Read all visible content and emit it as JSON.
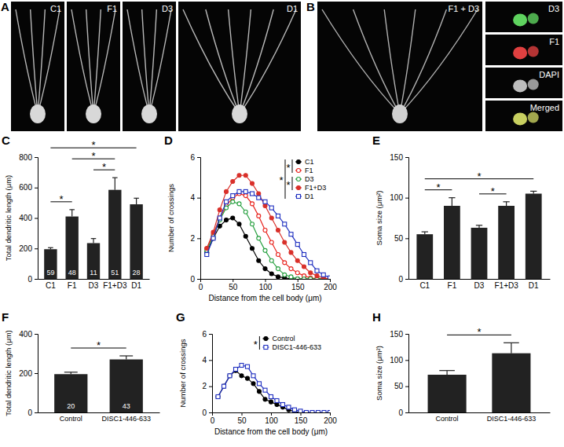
{
  "images": [
    {
      "title": "A",
      "labels": [
        "C1",
        "F1",
        "D3",
        "D1"
      ]
    },
    {
      "title": "B",
      "labels": [
        "F1 + D3",
        "D3",
        "F1",
        "DAPI",
        "Merged"
      ]
    }
  ],
  "chart_data": [
    {
      "type": "bar",
      "title": "C",
      "ylabel": "Total dendritic length (μm)",
      "categories": [
        "C1",
        "F1",
        "D3",
        "F1+D3",
        "D1"
      ],
      "values": [
        195,
        410,
        235,
        585,
        490
      ],
      "errors": [
        10,
        45,
        30,
        80,
        40
      ],
      "n": [
        59,
        48,
        11,
        51,
        28
      ],
      "color": "#222222",
      "ylim": [
        0,
        800
      ],
      "yticks": [
        0,
        200,
        400,
        600,
        800
      ],
      "annotations": [
        {
          "text": "*",
          "from": "C1",
          "to": "F1"
        },
        {
          "text": "*",
          "from": "D3",
          "to": "F1+D3"
        },
        {
          "text": "*",
          "from": "F1",
          "to": "F1+D3"
        },
        {
          "text": "*",
          "from": "C1",
          "to": "D1"
        }
      ]
    },
    {
      "type": "line",
      "title": "D",
      "xlabel": "Distance from the cell body (μm)",
      "ylabel": "Number of crossings",
      "x": [
        10,
        20,
        30,
        40,
        50,
        60,
        70,
        80,
        90,
        100,
        110,
        120,
        130,
        140,
        150,
        160,
        170,
        180,
        190,
        200
      ],
      "series": [
        {
          "name": "C1",
          "color": "#000000",
          "marker": "circle-filled",
          "values": [
            1.3,
            2.0,
            2.6,
            2.9,
            3.0,
            2.7,
            2.1,
            1.5,
            0.9,
            0.5,
            0.25,
            0.1,
            0.05,
            0,
            0,
            0,
            0,
            0,
            0,
            0
          ]
        },
        {
          "name": "F1",
          "color": "#e8221c",
          "marker": "circle-open",
          "values": [
            1.5,
            2.2,
            3.0,
            3.6,
            4.0,
            4.2,
            4.1,
            3.7,
            3.1,
            2.4,
            1.8,
            1.2,
            0.8,
            0.5,
            0.3,
            0.15,
            0.05,
            0,
            0,
            0
          ]
        },
        {
          "name": "D3",
          "color": "#27a040",
          "marker": "circle-open",
          "values": [
            1.4,
            2.1,
            2.9,
            3.5,
            3.8,
            3.7,
            3.3,
            2.7,
            2.0,
            1.4,
            0.9,
            0.5,
            0.2,
            0.1,
            0,
            0,
            0,
            0,
            0,
            0
          ]
        },
        {
          "name": "F1+D3",
          "color": "#d9302a",
          "marker": "circle-filled",
          "values": [
            1.5,
            2.3,
            3.4,
            4.3,
            4.8,
            5.1,
            5.1,
            4.7,
            4.2,
            3.6,
            3.0,
            2.4,
            1.8,
            1.3,
            0.9,
            0.6,
            0.3,
            0.15,
            0.05,
            0
          ]
        },
        {
          "name": "D1",
          "color": "#2030c0",
          "marker": "square-open",
          "values": [
            1.2,
            2.0,
            3.0,
            3.8,
            4.1,
            4.3,
            4.3,
            4.2,
            4.0,
            3.8,
            3.5,
            3.1,
            2.7,
            2.2,
            1.7,
            1.2,
            0.8,
            0.4,
            0.2,
            0.05
          ]
        }
      ],
      "xlim": [
        0,
        200
      ],
      "xticks": [
        0,
        50,
        100,
        150,
        200
      ],
      "ylim": [
        0,
        6
      ],
      "yticks": [
        0,
        2,
        4,
        6
      ],
      "legend": "upper right",
      "annotations": [
        {
          "text": "*",
          "from": "C1",
          "to": "F1"
        },
        {
          "text": "*",
          "from": "D3",
          "to": "F1+D3"
        },
        {
          "text": "*",
          "from": "C1",
          "to": "D1"
        }
      ]
    },
    {
      "type": "bar",
      "title": "E",
      "ylabel": "Soma size (μm²)",
      "categories": [
        "C1",
        "F1",
        "D3",
        "F1+D3",
        "D1"
      ],
      "values": [
        55,
        90,
        63,
        90,
        105
      ],
      "errors": [
        3,
        10,
        3,
        5,
        3
      ],
      "color": "#222222",
      "ylim": [
        0,
        150
      ],
      "yticks": [
        0,
        50,
        100,
        150
      ],
      "annotations": [
        {
          "text": "*",
          "from": "C1",
          "to": "F1"
        },
        {
          "text": "*",
          "from": "D3",
          "to": "F1+D3"
        },
        {
          "text": "*",
          "from": "C1",
          "to": "D1"
        }
      ]
    },
    {
      "type": "bar",
      "title": "F",
      "ylabel": "Total dendritic length (μm)",
      "categories": [
        "Control",
        "DISC1-446-633"
      ],
      "values": [
        195,
        270
      ],
      "errors": [
        10,
        18
      ],
      "n": [
        20,
        43
      ],
      "color": "#222222",
      "ylim": [
        0,
        400
      ],
      "yticks": [
        0,
        200,
        400
      ],
      "annotations": [
        {
          "text": "*",
          "from": "Control",
          "to": "DISC1-446-633"
        }
      ]
    },
    {
      "type": "line",
      "title": "G",
      "xlabel": "Distance from the cell body (μm)",
      "ylabel": "Number of crossings",
      "x": [
        10,
        20,
        30,
        40,
        50,
        60,
        70,
        80,
        90,
        100,
        110,
        120,
        130,
        140,
        150,
        160,
        170,
        180,
        190,
        200
      ],
      "series": [
        {
          "name": "Control",
          "color": "#000000",
          "marker": "circle-filled",
          "values": [
            1.2,
            2.0,
            2.8,
            3.2,
            2.8,
            2.6,
            2.2,
            1.6,
            1.0,
            0.8,
            0.6,
            0.4,
            0.2,
            0.05,
            0,
            null,
            null,
            null,
            null,
            null
          ]
        },
        {
          "name": "DISC1-446-633",
          "color": "#2030c0",
          "marker": "square-open",
          "values": [
            1.2,
            2.0,
            2.8,
            3.3,
            3.6,
            3.5,
            2.8,
            2.2,
            1.7,
            1.2,
            0.9,
            0.6,
            0.4,
            0.2,
            0.1,
            0,
            0,
            0,
            0,
            0
          ]
        }
      ],
      "xlim": [
        0,
        200
      ],
      "xticks": [
        0,
        50,
        100,
        150,
        200
      ],
      "ylim": [
        0,
        6
      ],
      "yticks": [
        0,
        2,
        4,
        6
      ],
      "legend": "upper right",
      "annotations": [
        {
          "text": "*",
          "from": "Control",
          "to": "DISC1-446-633"
        }
      ]
    },
    {
      "type": "bar",
      "title": "H",
      "ylabel": "Soma size (μm²)",
      "categories": [
        "Control",
        "DISC1-446-633"
      ],
      "values": [
        72,
        113
      ],
      "errors": [
        8,
        20
      ],
      "color": "#222222",
      "ylim": [
        0,
        150
      ],
      "yticks": [
        0,
        50,
        100,
        150
      ],
      "annotations": [
        {
          "text": "*",
          "from": "Control",
          "to": "DISC1-446-633"
        }
      ]
    }
  ]
}
